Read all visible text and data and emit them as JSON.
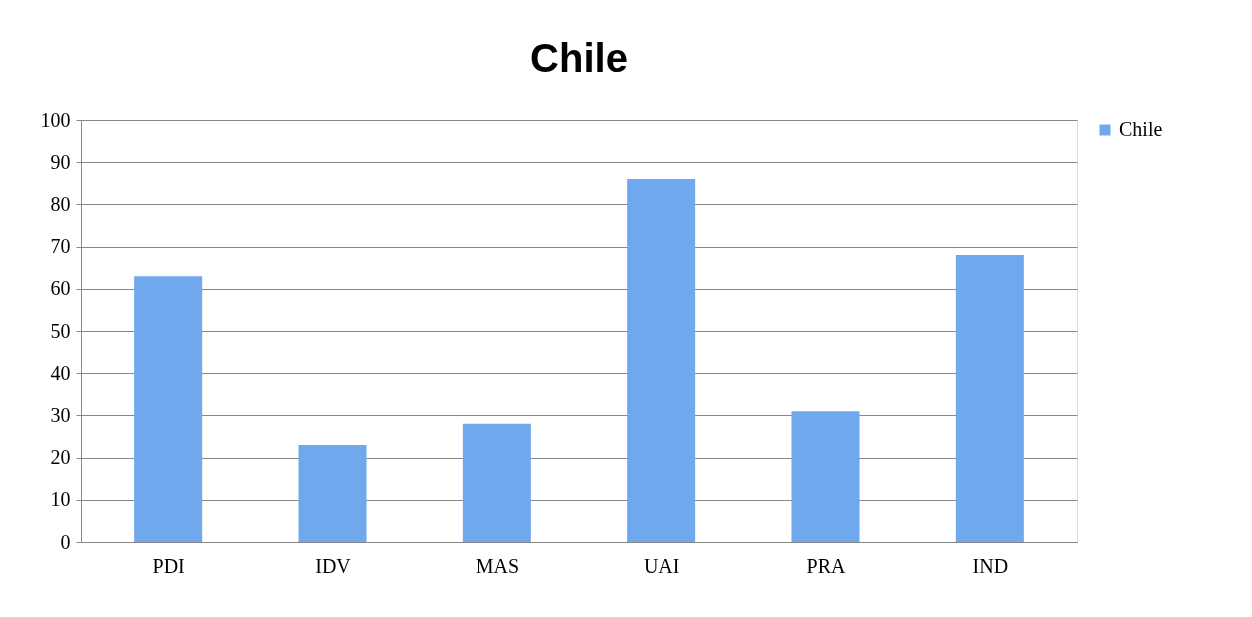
{
  "chart_data": {
    "type": "bar",
    "title": "Chile",
    "categories": [
      "PDI",
      "IDV",
      "MAS",
      "UAI",
      "PRA",
      "IND"
    ],
    "series": [
      {
        "name": "Chile",
        "color": "#6fa8ec",
        "values": [
          63,
          23,
          28,
          86,
          31,
          68
        ]
      }
    ],
    "ylim": [
      0,
      100
    ],
    "yticks": [
      0,
      10,
      20,
      30,
      40,
      50,
      60,
      70,
      80,
      90,
      100
    ],
    "grid": "y",
    "legend": "right"
  }
}
